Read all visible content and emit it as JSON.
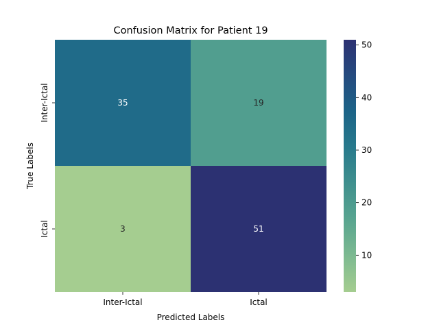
{
  "chart_data": {
    "type": "heatmap",
    "title": "Confusion Matrix for Patient 19",
    "xlabel": "Predicted Labels",
    "ylabel": "True Labels",
    "x_categories": [
      "Inter-Ictal",
      "Ictal"
    ],
    "y_categories": [
      "Inter-Ictal",
      "Ictal"
    ],
    "values": [
      [
        35,
        19
      ],
      [
        3,
        51
      ]
    ],
    "colormap": "crest",
    "color_range": [
      3,
      51
    ],
    "colorbar_ticks": [
      "10",
      "20",
      "30",
      "40",
      "50"
    ],
    "cmap_stops": [
      "#a5cd90",
      "#7dba91",
      "#59a590",
      "#40908e",
      "#287a8c",
      "#1c6488",
      "#254b7f",
      "#2c3172"
    ],
    "annot_colors": {
      "dark_bg": "#ffffff",
      "light_bg": "#262626"
    },
    "grid": false
  }
}
